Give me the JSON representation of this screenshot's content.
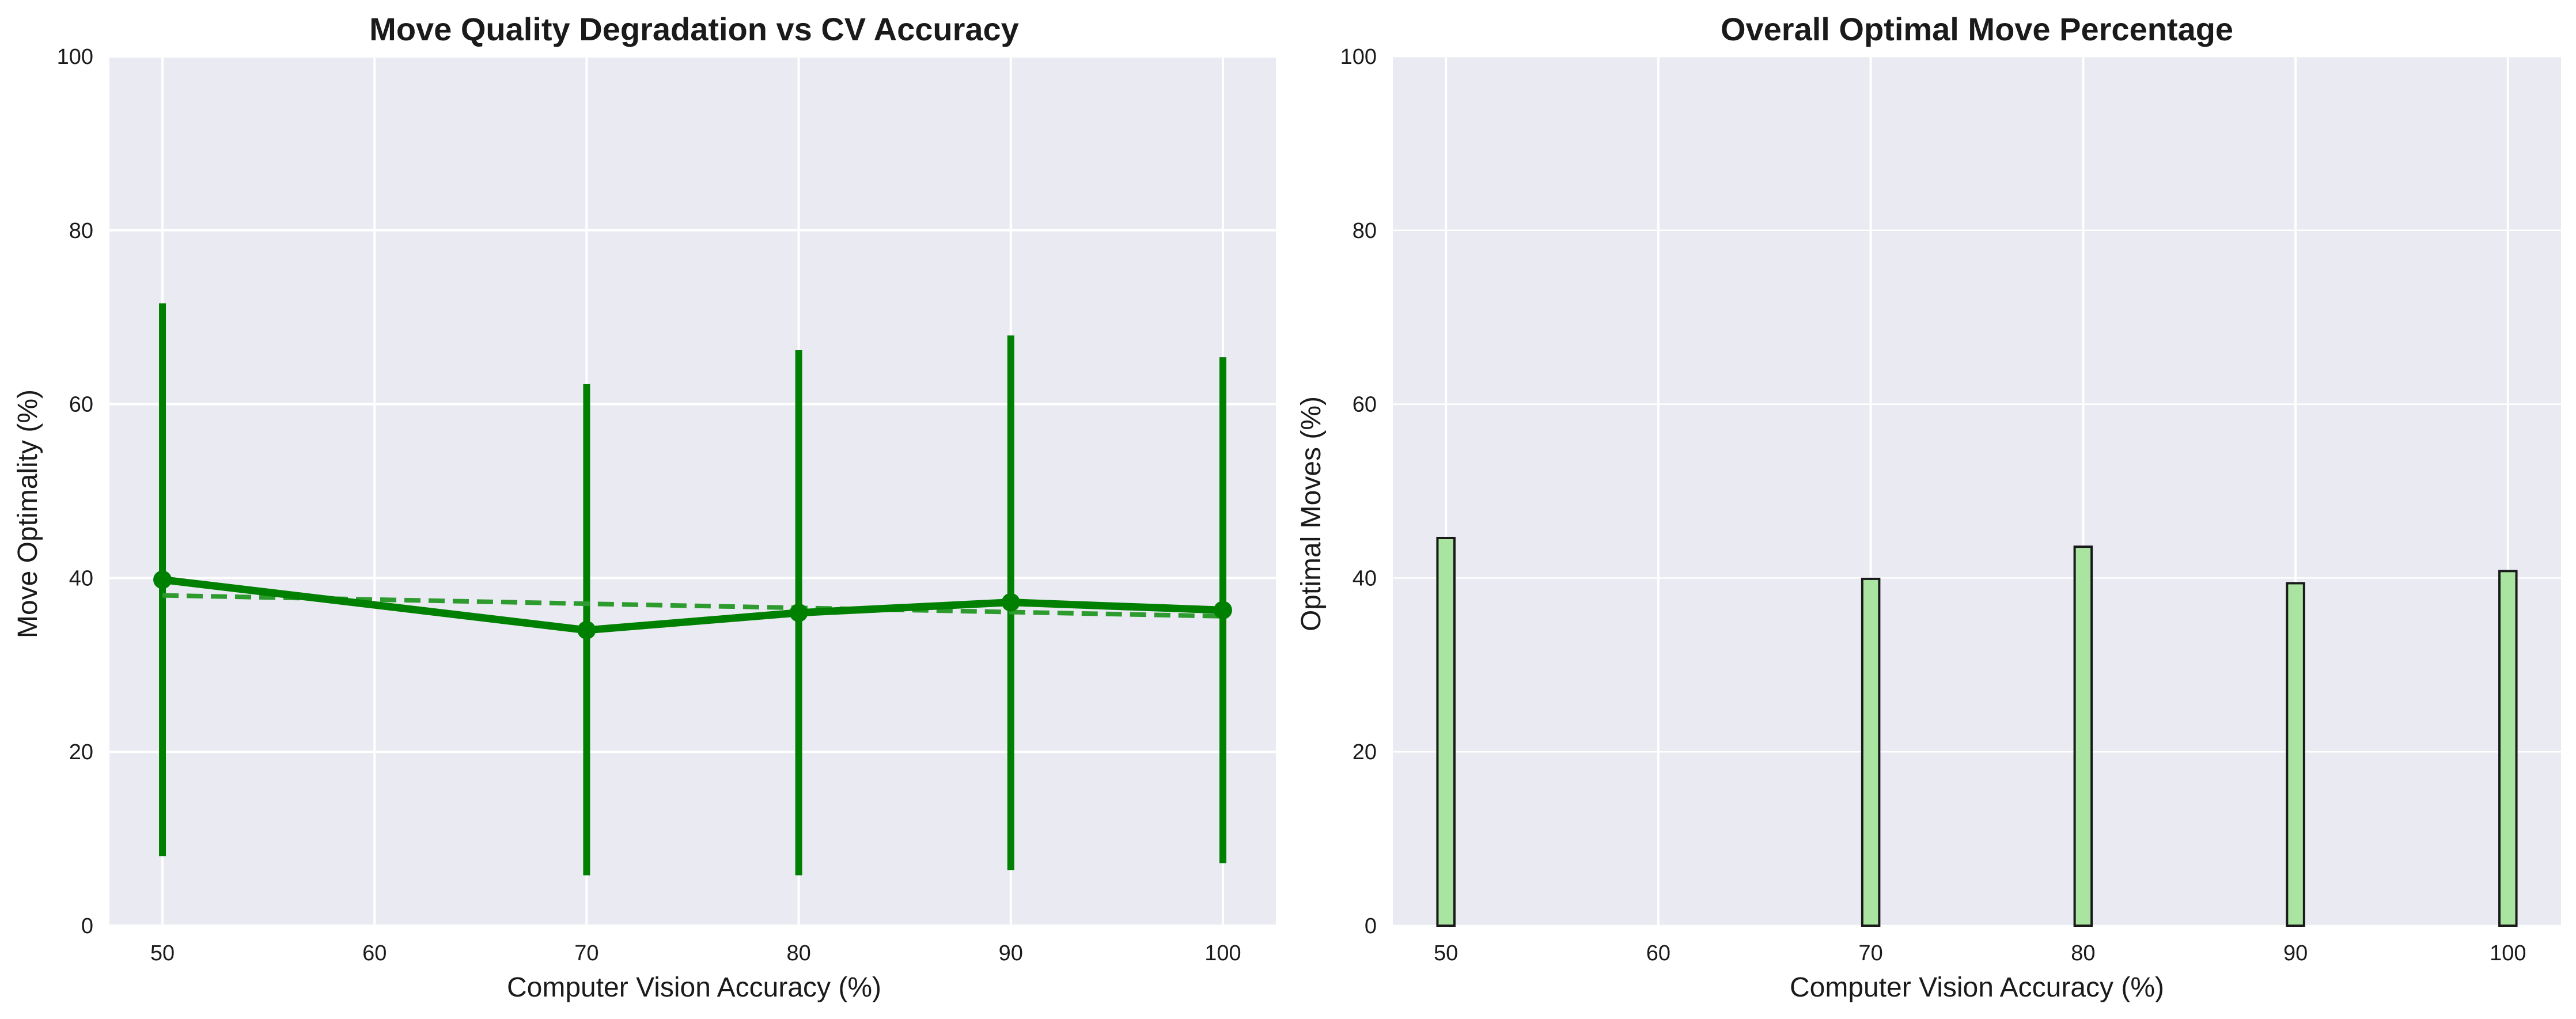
{
  "chart_data": [
    {
      "type": "line",
      "title": "Move Quality Degradation vs CV Accuracy",
      "xlabel": "Computer Vision Accuracy (%)",
      "ylabel": "Move Optimality (%)",
      "xlim": [
        47.5,
        102.5
      ],
      "ylim": [
        0,
        100
      ],
      "x_ticks": [
        50,
        60,
        70,
        80,
        90,
        100
      ],
      "y_ticks": [
        0,
        20,
        40,
        60,
        80,
        100
      ],
      "grid": true,
      "colors": {
        "background": "#eaeaf2",
        "series": "#008000",
        "trend": "#2e9b2e"
      },
      "series": [
        {
          "x": [
            50,
            70,
            80,
            90,
            100
          ],
          "values": [
            39.8,
            34.0,
            36.0,
            37.2,
            36.3
          ],
          "error_low": [
            8.0,
            5.8,
            5.8,
            6.4,
            7.2
          ],
          "error_high": [
            71.6,
            62.3,
            66.2,
            67.9,
            65.4
          ],
          "style": "solid",
          "marker": "circle"
        },
        {
          "x": [
            50,
            100
          ],
          "values": [
            38.0,
            35.6
          ],
          "style": "dashed"
        }
      ]
    },
    {
      "type": "bar",
      "title": "Overall Optimal Move Percentage",
      "xlabel": "Computer Vision Accuracy (%)",
      "ylabel": "Optimal Moves (%)",
      "xlim": [
        47.5,
        102.5
      ],
      "ylim": [
        0,
        100
      ],
      "x_ticks": [
        50,
        60,
        70,
        80,
        90,
        100
      ],
      "y_ticks": [
        0,
        20,
        40,
        60,
        80,
        100
      ],
      "grid": true,
      "colors": {
        "background": "#eaeaf2",
        "bar_fill": "#a9e4a0",
        "bar_edge": "#1a1a1a"
      },
      "categories": [
        50,
        70,
        80,
        90,
        100
      ],
      "values": [
        44.6,
        39.9,
        43.6,
        39.4,
        40.8
      ]
    }
  ]
}
